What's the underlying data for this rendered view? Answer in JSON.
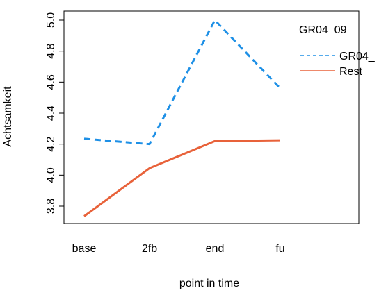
{
  "chart_data": {
    "type": "line",
    "title": "",
    "xlabel": "point in time",
    "ylabel": "Achtsamkeit",
    "categories": [
      "base",
      "2fb",
      "end",
      "fu"
    ],
    "ylim": [
      3.73,
      5.0
    ],
    "yticks": [
      "3.8",
      "4.0",
      "4.2",
      "4.4",
      "4.6",
      "4.8",
      "5.0"
    ],
    "grid": false,
    "legend": {
      "title": "GR04_09",
      "position": "top-right",
      "items": [
        "GR04_",
        "Rest"
      ]
    },
    "series": [
      {
        "name": "GR04_",
        "color": "#1E90E6",
        "line_style": "dashed",
        "values": [
          4.235,
          4.2,
          5.0,
          4.56
        ]
      },
      {
        "name": "Rest",
        "color": "#E8623A",
        "line_style": "solid",
        "values": [
          3.735,
          4.045,
          4.22,
          4.225
        ]
      }
    ]
  }
}
